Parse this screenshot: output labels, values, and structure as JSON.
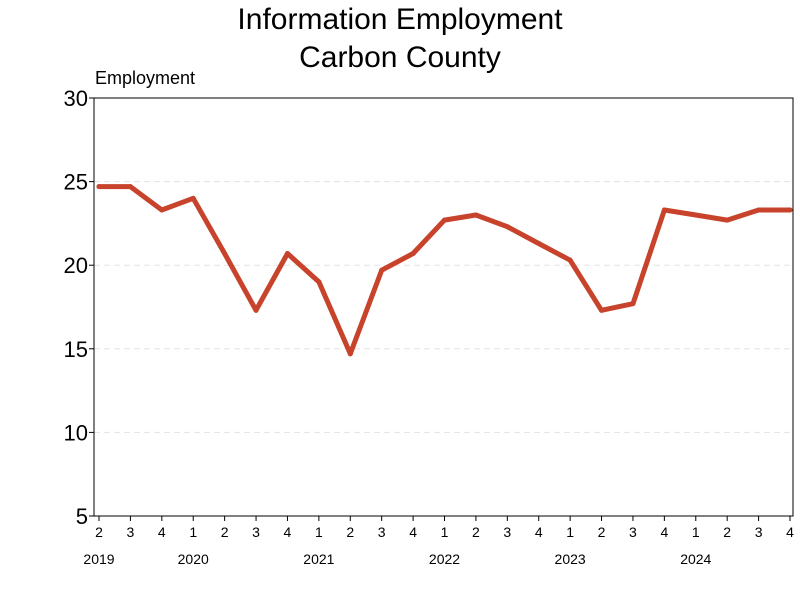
{
  "chart_data": {
    "type": "line",
    "title": "Information Employment",
    "subtitle": "Carbon County",
    "ylabel": "Employment",
    "xlabel": "",
    "ylim": [
      5,
      30
    ],
    "yticks": [
      5,
      10,
      15,
      20,
      25,
      30
    ],
    "grid": true,
    "legend": "none",
    "color": "#c8432b",
    "x": [
      "2019 Q2",
      "2019 Q3",
      "2019 Q4",
      "2020 Q1",
      "2020 Q2",
      "2020 Q3",
      "2020 Q4",
      "2021 Q1",
      "2021 Q2",
      "2021 Q3",
      "2021 Q4",
      "2022 Q1",
      "2022 Q2",
      "2022 Q3",
      "2022 Q4",
      "2023 Q1",
      "2023 Q2",
      "2023 Q3",
      "2023 Q4",
      "2024 Q1",
      "2024 Q2",
      "2024 Q3",
      "2024 Q4"
    ],
    "x_quarter_labels": [
      "2",
      "3",
      "4",
      "1",
      "2",
      "3",
      "4",
      "1",
      "2",
      "3",
      "4",
      "1",
      "2",
      "3",
      "4",
      "1",
      "2",
      "3",
      "4",
      "1",
      "2",
      "3",
      "4"
    ],
    "x_year_labels": [
      {
        "label": "2019",
        "index": 0
      },
      {
        "label": "2020",
        "index": 3
      },
      {
        "label": "2021",
        "index": 7
      },
      {
        "label": "2022",
        "index": 11
      },
      {
        "label": "2023",
        "index": 15
      },
      {
        "label": "2024",
        "index": 19
      }
    ],
    "values": [
      24.7,
      24.7,
      23.3,
      24.0,
      20.7,
      17.3,
      20.7,
      19.0,
      14.7,
      19.7,
      20.7,
      22.7,
      23.0,
      22.3,
      21.3,
      20.3,
      17.3,
      17.7,
      23.3,
      23.0,
      22.7,
      23.3,
      23.3
    ]
  }
}
